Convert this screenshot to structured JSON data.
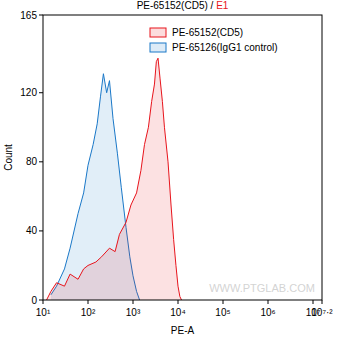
{
  "chart_data": {
    "type": "area",
    "title": "PE-65152(CD5) / E1",
    "x_label": "PE-A",
    "y_label": "Count",
    "log": "x",
    "grid": false,
    "legend": "upper right",
    "annotations": [
      "WWW.PTGLAB.COM"
    ],
    "xlim": [
      10,
      15848932
    ],
    "xticks": [
      {
        "value": 10,
        "label": "10¹"
      },
      {
        "value": 100,
        "label": "10²"
      },
      {
        "value": 1000,
        "label": "10³"
      },
      {
        "value": 10000,
        "label": "10⁴"
      },
      {
        "value": 100000,
        "label": "10⁵"
      },
      {
        "value": 1000000,
        "label": "10⁶"
      },
      {
        "value": 10000000,
        "label": "10⁷"
      },
      {
        "value": 15848932,
        "label": "10⁷·²"
      }
    ],
    "ylim": [
      0,
      165
    ],
    "yticks": [
      0,
      40,
      80,
      120,
      165
    ],
    "series": [
      {
        "name": "PE-65152(CD5)",
        "color": "#e8141c",
        "x": [
          12,
          15,
          20,
          30,
          40,
          60,
          80,
          100,
          150,
          200,
          300,
          400,
          500,
          700,
          900,
          1200,
          1500,
          1800,
          2200,
          2600,
          3000,
          3300,
          3600,
          4000,
          4500,
          5000,
          6000,
          7000,
          8000,
          9000,
          10000,
          11000,
          12000
        ],
        "values": [
          0,
          5,
          10,
          8,
          15,
          12,
          18,
          20,
          22,
          25,
          30,
          28,
          38,
          45,
          55,
          62,
          75,
          90,
          100,
          115,
          125,
          138,
          140,
          128,
          115,
          100,
          80,
          55,
          35,
          20,
          8,
          2,
          0
        ]
      },
      {
        "name": "PE-65126(IgG1 control)",
        "color": "#1a78c8",
        "x": [
          15,
          20,
          30,
          40,
          60,
          80,
          100,
          130,
          160,
          190,
          220,
          260,
          300,
          360,
          450,
          550,
          700,
          850,
          1000,
          1200,
          1400
        ],
        "values": [
          3,
          8,
          18,
          30,
          50,
          62,
          78,
          90,
          102,
          118,
          131,
          120,
          127,
          105,
          85,
          65,
          42,
          25,
          14,
          5,
          0
        ]
      }
    ]
  }
}
